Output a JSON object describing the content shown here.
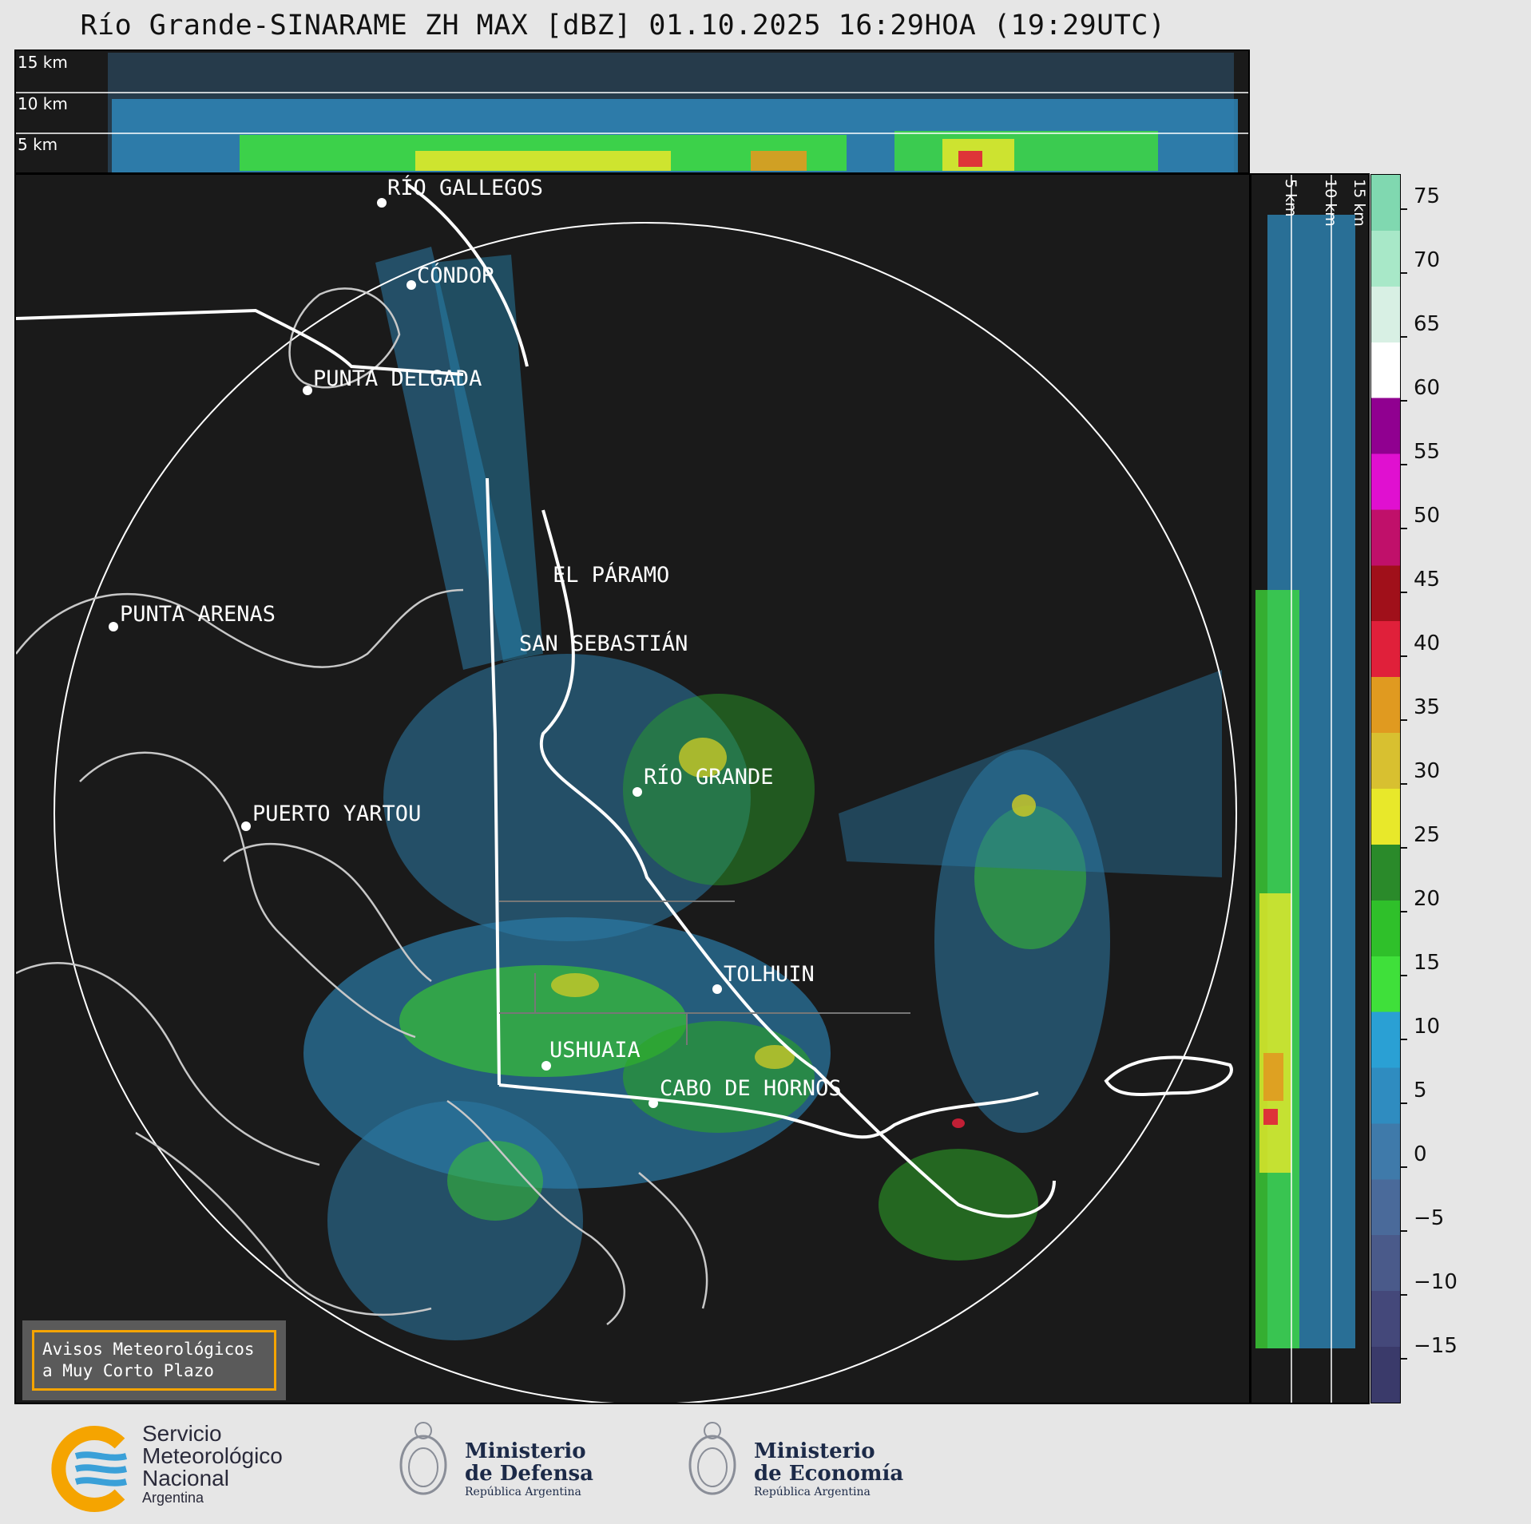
{
  "title": "Río Grande-SINARAME ZH MAX [dBZ] 01.10.2025 16:29HOA (19:29UTC)",
  "top_heights": [
    "15 km",
    "10 km",
    "5 km"
  ],
  "side_heights": [
    "5 km",
    "10 km",
    "15 km"
  ],
  "colorbar": {
    "ticks": [
      "75",
      "70",
      "65",
      "60",
      "55",
      "50",
      "45",
      "40",
      "35",
      "30",
      "25",
      "20",
      "15",
      "10",
      "5",
      "0",
      "−5",
      "−10",
      "−15"
    ],
    "colors": [
      "#3a3a6a",
      "#44487a",
      "#4a5a8a",
      "#4a6a9a",
      "#3f7aaa",
      "#2f8cc0",
      "#2aa0d4",
      "#3fe03a",
      "#2fc02a",
      "#2a8a2a",
      "#e8e82a",
      "#d8c030",
      "#e09a20",
      "#e0203a",
      "#a0101a",
      "#c0106a",
      "#e010d0",
      "#900090",
      "#ffffff",
      "#d8f0e4",
      "#a8e8c8",
      "#80d8b0"
    ]
  },
  "places": [
    {
      "name": "RÍO GALLEGOS"
    },
    {
      "name": "CÓNDOR"
    },
    {
      "name": "PUNTA DELGADA"
    },
    {
      "name": "EL PÁRAMO"
    },
    {
      "name": "PUNTA ARENAS"
    },
    {
      "name": "SAN SEBASTIÁN"
    },
    {
      "name": "RÍO GRANDE"
    },
    {
      "name": "PUERTO YARTOU"
    },
    {
      "name": "TOLHUIN"
    },
    {
      "name": "USHUAIA"
    },
    {
      "name": "CABO DE HORNOS"
    }
  ],
  "aviso": {
    "line1": "Avisos Meteorológicos",
    "line2": "a Muy Corto Plazo"
  },
  "footer": {
    "smn": {
      "l1": "Servicio",
      "l2": "Meteorológico",
      "l3": "Nacional",
      "l4": "Argentina"
    },
    "defensa": {
      "l1": "Ministerio",
      "l2": "de Defensa",
      "l3": "República Argentina"
    },
    "economia": {
      "l1": "Ministerio",
      "l2": "de Economía",
      "l3": "República Argentina"
    }
  }
}
